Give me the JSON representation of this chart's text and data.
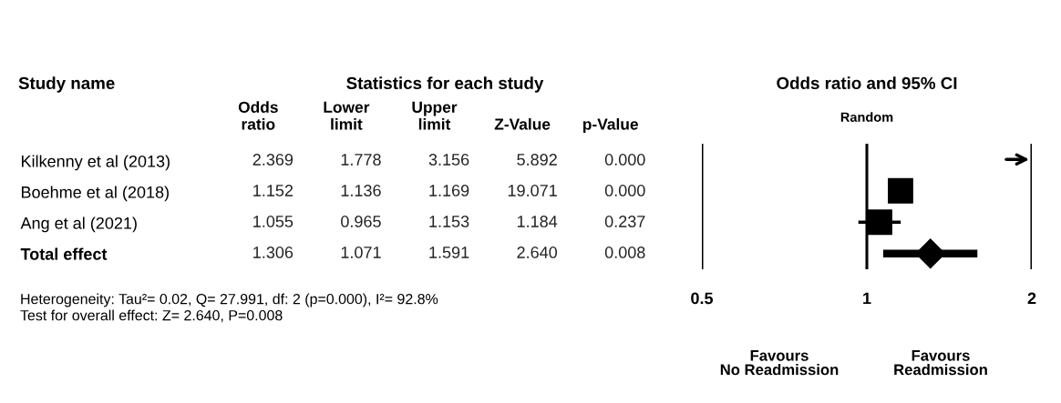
{
  "chart_data": [
    {
      "type": "other",
      "title": "Statistics for each study",
      "ylabel": "Study name",
      "categories": [
        "Odds\nratio",
        "Lower\nlimit",
        "Upper\nlimit",
        "Z-Value",
        "p-Value"
      ],
      "y_categories": [
        "Kilkenny et al (2013)",
        "Boehme et al (2018)",
        "Ang et al (2021)",
        "Total effect"
      ],
      "cell_labels": [
        [
          "2.369",
          "1.778",
          "3.156",
          "5.892",
          "0.000"
        ],
        [
          "1.152",
          "1.136",
          "1.169",
          "19.071",
          "0.000"
        ],
        [
          "1.055",
          "0.965",
          "1.153",
          "1.184",
          "0.237"
        ],
        [
          "1.306",
          "1.071",
          "1.591",
          "2.640",
          "0.008"
        ]
      ],
      "annotations": [
        "Heterogeneity: Tau²= 0.02, Q= 27.991, df: 2 (p=0.000), I²= 92.8%",
        "Test for overall effect: Z= 2.640, P=0.008"
      ]
    },
    {
      "type": "scatter",
      "orientation": "horizontal",
      "title": "Odds ratio and 95% CI",
      "subtitle": "Random",
      "categories": [
        null,
        null,
        null,
        null
      ],
      "series": [
        {
          "type": "scatter",
          "marker": "square",
          "color": "#000000",
          "values": [
            null,
            1.152,
            1.055,
            null
          ],
          "errors": [
            null,
            null,
            [
              0.965,
              1.153
            ],
            null
          ]
        },
        {
          "type": "scatter",
          "marker": "diamond",
          "color": "#000000",
          "values": [
            null,
            null,
            null,
            1.306
          ],
          "errors": [
            null,
            null,
            null,
            [
              1.071,
              1.591
            ]
          ]
        }
      ],
      "log": "x",
      "xlim": [
        0.5,
        2
      ],
      "xticks": [
        0.5,
        1,
        2
      ],
      "grid": "x",
      "annotations": [
        "Favours\nNo Readmission",
        "Favours\nReadmission"
      ]
    }
  ]
}
